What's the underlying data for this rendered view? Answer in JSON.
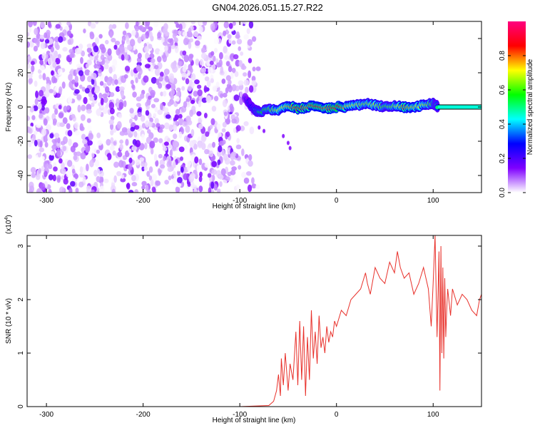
{
  "figure": {
    "title": "GN04.2026.051.15.27.R22"
  },
  "colorbar": {
    "label": "Normalized spectral amplitude",
    "ticks": [
      "0.0",
      "0.2",
      "0.4",
      "0.6",
      "0.8"
    ],
    "tick_values": [
      0.0,
      0.2,
      0.4,
      0.6,
      0.8
    ],
    "range": [
      0,
      1
    ],
    "colors": [
      "#ffffff",
      "#7f00ff",
      "#0000ff",
      "#00ffff",
      "#00ff00",
      "#ffff00",
      "#ff0000",
      "#ff0080"
    ]
  },
  "chart_data": [
    {
      "type": "heatmap",
      "title": "",
      "xlabel": "Height of straight line (km)",
      "ylabel": "Frequency (Hz)",
      "xlim": [
        -320,
        150
      ],
      "ylim": [
        -50,
        50
      ],
      "xticks": [
        -300,
        -200,
        -100,
        0,
        100
      ],
      "yticks": [
        -40,
        -20,
        0,
        20,
        40
      ],
      "xtick_labels": [
        "-300",
        "-200",
        "-100",
        "0",
        "100"
      ],
      "ytick_labels": [
        "-40",
        "-20",
        "0",
        "20",
        "40"
      ],
      "regions": [
        {
          "name": "noise",
          "x_range": [
            -320,
            -80
          ],
          "y_range": [
            -50,
            50
          ],
          "amplitude": "0.0-0.15"
        },
        {
          "name": "signal",
          "x_range": [
            -95,
            105
          ],
          "y_center": 0,
          "amplitude": "0.3-0.9"
        },
        {
          "name": "fit-line",
          "x_range": [
            105,
            150
          ],
          "y": 0
        }
      ],
      "signal_band": {
        "x": [
          -95,
          -90,
          -85,
          -80,
          -70,
          -60,
          -50,
          -40,
          -30,
          -20,
          -10,
          0,
          10,
          20,
          30,
          40,
          50,
          60,
          70,
          80,
          90,
          100,
          105
        ],
        "y": [
          5,
          2,
          -2,
          -3,
          -1,
          -2,
          1,
          -1,
          0,
          1,
          -1,
          0,
          0,
          1,
          2,
          1,
          0,
          1,
          0,
          0,
          1,
          2,
          0
        ],
        "amplitude": [
          0.3,
          0.45,
          0.5,
          0.55,
          0.6,
          0.7,
          0.75,
          0.85,
          0.8,
          0.85,
          0.8,
          0.9,
          0.75,
          0.7,
          0.65,
          0.7,
          0.6,
          0.65,
          0.8,
          0.75,
          0.7,
          0.6,
          0.5
        ]
      },
      "stray_points": {
        "x": [
          -55,
          -50,
          -48,
          -80,
          -75
        ],
        "y": [
          -17,
          -21,
          -24,
          -12,
          -14
        ]
      }
    },
    {
      "type": "line",
      "title": "",
      "xlabel": "Height of straight line (km)",
      "ylabel": "SNR (10 * v/v)",
      "y_multiplier": "(x10",
      "y_multiplier_exp": "4",
      "y_multiplier_close": ")",
      "xlim": [
        -320,
        150
      ],
      "ylim": [
        0,
        3.2
      ],
      "xticks": [
        -300,
        -200,
        -100,
        0,
        100
      ],
      "yticks": [
        0,
        1,
        2,
        3
      ],
      "xtick_labels": [
        "-300",
        "-200",
        "-100",
        "0",
        "100"
      ],
      "ytick_labels": [
        "0",
        "1",
        "2",
        "3"
      ],
      "series": [
        {
          "color": "#e8302a",
          "x": [
            -320,
            -250,
            -150,
            -100,
            -70,
            -65,
            -62,
            -60,
            -58,
            -57,
            -55,
            -53,
            -50,
            -48,
            -45,
            -42,
            -40,
            -38,
            -36,
            -34,
            -32,
            -30,
            -28,
            -26,
            -24,
            -22,
            -20,
            -18,
            -16,
            -14,
            -12,
            -10,
            -8,
            -6,
            -4,
            -2,
            0,
            5,
            10,
            15,
            20,
            25,
            30,
            32,
            35,
            40,
            45,
            50,
            55,
            60,
            63,
            66,
            70,
            75,
            80,
            85,
            90,
            95,
            98,
            100,
            102,
            104,
            106,
            107,
            108,
            109,
            110,
            111,
            112,
            113,
            114,
            115,
            118,
            120,
            125,
            130,
            135,
            140,
            145,
            148,
            150
          ],
          "y": [
            0.0,
            0.0,
            0.0,
            0.0,
            0.02,
            0.1,
            0.3,
            0.6,
            0.2,
            0.9,
            0.4,
            1.0,
            0.3,
            0.8,
            0.5,
            1.4,
            0.4,
            1.6,
            0.5,
            1.5,
            0.2,
            1.3,
            0.5,
            1.8,
            0.9,
            1.4,
            0.8,
            1.7,
            1.1,
            1.3,
            1.0,
            1.5,
            1.2,
            1.4,
            1.3,
            1.6,
            1.5,
            1.8,
            1.7,
            2.0,
            2.1,
            2.2,
            2.5,
            2.3,
            2.1,
            2.6,
            2.4,
            2.3,
            2.7,
            2.5,
            2.9,
            2.6,
            2.4,
            2.5,
            2.1,
            2.3,
            2.6,
            2.2,
            1.5,
            2.3,
            3.2,
            1.3,
            2.9,
            0.3,
            3.0,
            1.0,
            2.6,
            0.9,
            2.4,
            1.3,
            1.8,
            2.2,
            1.7,
            2.2,
            1.9,
            2.1,
            2.0,
            1.8,
            1.7,
            2.0,
            2.1
          ]
        }
      ]
    }
  ]
}
